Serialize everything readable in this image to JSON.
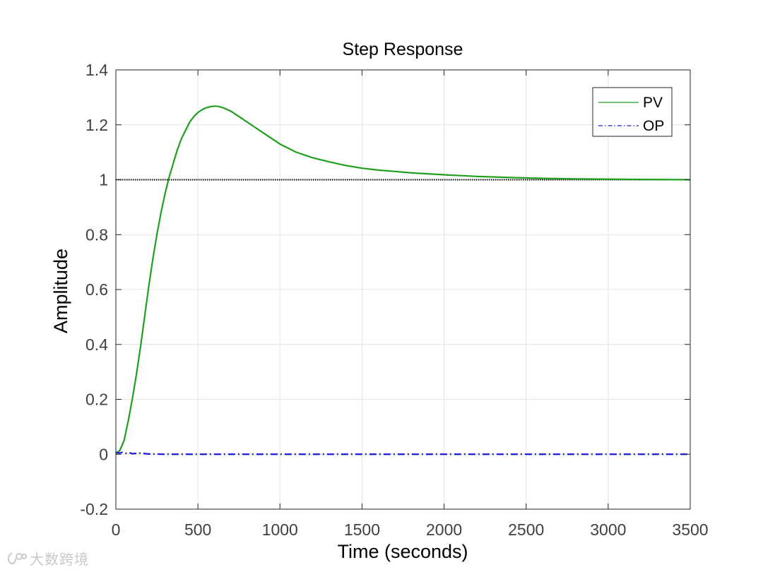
{
  "chart_data": {
    "type": "line",
    "title": "Step Response",
    "xlabel": "Time (seconds)",
    "ylabel": "Amplitude",
    "xlim": [
      0,
      3500
    ],
    "ylim": [
      -0.2,
      1.4
    ],
    "xticks": [
      0,
      500,
      1000,
      1500,
      2000,
      2500,
      3000,
      3500
    ],
    "xtick_labels": [
      "0",
      "500",
      "1000",
      "1500",
      "2000",
      "2500",
      "3000",
      "3500"
    ],
    "yticks": [
      -0.2,
      0,
      0.2,
      0.4,
      0.6,
      0.8,
      1,
      1.2,
      1.4
    ],
    "ytick_labels": [
      "-0.2",
      "0",
      "0.2",
      "0.4",
      "0.6",
      "0.8",
      "1",
      "1.2",
      "1.4"
    ],
    "grid": true,
    "legend_position": "top-right",
    "reference_line": {
      "y": 1,
      "style": "dotted",
      "color": "#000000"
    },
    "series": [
      {
        "name": "PV",
        "color": "#1ea01e",
        "style": "solid",
        "x": [
          0,
          25,
          50,
          75,
          100,
          125,
          150,
          175,
          200,
          225,
          250,
          275,
          300,
          325,
          350,
          375,
          400,
          425,
          450,
          475,
          500,
          525,
          550,
          575,
          600,
          625,
          650,
          700,
          750,
          800,
          850,
          900,
          950,
          1000,
          1100,
          1200,
          1300,
          1400,
          1500,
          1600,
          1700,
          1800,
          2000,
          2200,
          2400,
          2600,
          2800,
          3000,
          3200,
          3500
        ],
        "y": [
          0,
          0.015,
          0.05,
          0.12,
          0.2,
          0.29,
          0.39,
          0.5,
          0.61,
          0.71,
          0.8,
          0.88,
          0.95,
          1.01,
          1.06,
          1.11,
          1.15,
          1.18,
          1.21,
          1.23,
          1.245,
          1.255,
          1.262,
          1.266,
          1.268,
          1.267,
          1.263,
          1.25,
          1.23,
          1.21,
          1.19,
          1.17,
          1.15,
          1.13,
          1.1,
          1.08,
          1.065,
          1.052,
          1.042,
          1.035,
          1.03,
          1.025,
          1.018,
          1.012,
          1.008,
          1.005,
          1.003,
          1.002,
          1.001,
          1.0
        ]
      },
      {
        "name": "OP",
        "color": "#1a1adb",
        "style": "dash-dot",
        "x": [
          0,
          20,
          40,
          60,
          80,
          100,
          150,
          200,
          300,
          500,
          1000,
          2000,
          3000,
          3500
        ],
        "y": [
          0.008,
          0.004,
          0.007,
          0.003,
          0.006,
          0.002,
          0.004,
          0.001,
          0.0,
          0.0,
          0.0,
          0.0,
          0.0,
          0.0
        ]
      }
    ]
  },
  "watermark": {
    "text": "大数跨境",
    "logo_icon": "watermark-logo-icon"
  }
}
